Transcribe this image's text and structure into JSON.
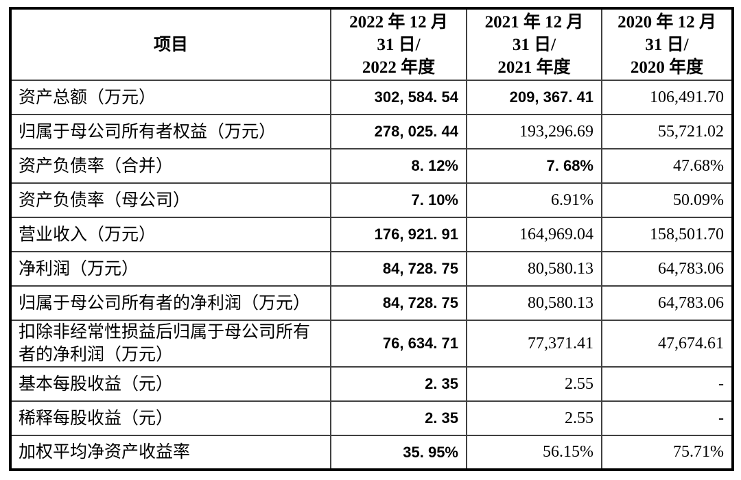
{
  "table": {
    "item_header": "项目",
    "col_headers": [
      "2022 年 12 月\n31 日/\n2022 年度",
      "2021 年 12 月\n31 日/\n2021 年度",
      "2020 年 12 月\n31 日/\n2020 年度"
    ],
    "rows": [
      {
        "label": "资产总额（万元）",
        "values": [
          "302, 584. 54",
          "209, 367. 41",
          "106,491.70"
        ]
      },
      {
        "label": "归属于母公司所有者权益（万元）",
        "values": [
          "278, 025. 44",
          "193,296.69",
          "55,721.02"
        ]
      },
      {
        "label": "资产负债率（合并）",
        "values": [
          "8. 12%",
          "7. 68%",
          "47.68%"
        ]
      },
      {
        "label": "资产负债率（母公司）",
        "values": [
          "7. 10%",
          "6.91%",
          "50.09%"
        ]
      },
      {
        "label": "营业收入（万元）",
        "values": [
          "176, 921. 91",
          "164,969.04",
          "158,501.70"
        ]
      },
      {
        "label": "净利润（万元）",
        "values": [
          "84, 728. 75",
          "80,580.13",
          "64,783.06"
        ]
      },
      {
        "label": "归属于母公司所有者的净利润（万元）",
        "values": [
          "84, 728. 75",
          "80,580.13",
          "64,783.06"
        ]
      },
      {
        "label": "扣除非经常性损益后归属于母公司所有者的净利润（万元）",
        "values": [
          "76, 634. 71",
          "77,371.41",
          "47,674.61"
        ]
      },
      {
        "label": "基本每股收益（元）",
        "values": [
          "2. 35",
          "2.55",
          "-"
        ]
      },
      {
        "label": "稀释每股收益（元）",
        "values": [
          "2. 35",
          "2.55",
          "-"
        ]
      },
      {
        "label": "加权平均净资产收益率",
        "values": [
          "35. 95%",
          "56.15%",
          "75.71%"
        ]
      }
    ],
    "colors": {
      "background": "#ffffff",
      "text": "#000000",
      "border_outer": "#000000",
      "border_inner": "#404040"
    }
  }
}
